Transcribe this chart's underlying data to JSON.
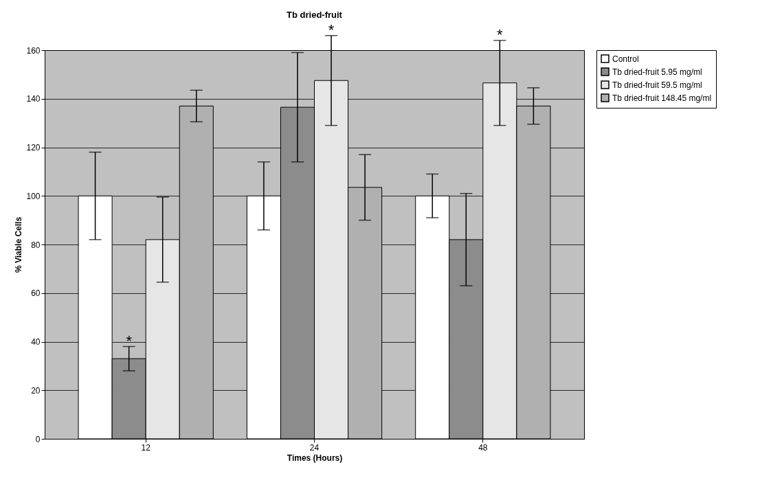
{
  "chart_data": {
    "type": "bar",
    "title": "Tb dried-fruit",
    "xlabel": "Times (Hours)",
    "ylabel": "% Viable Cells",
    "categories": [
      "12",
      "24",
      "48"
    ],
    "series": [
      {
        "name": "Control",
        "color": "#ffffff",
        "values": [
          100,
          100,
          100
        ],
        "errors": [
          18,
          14,
          9
        ]
      },
      {
        "name": "Tb dried-fruit 5.95 mg/ml",
        "color": "#8c8c8c",
        "values": [
          33,
          136.5,
          82
        ],
        "errors": [
          5,
          22.5,
          19
        ]
      },
      {
        "name": "Tb dried-fruit 59.5 mg/ml",
        "color": "#e6e6e6",
        "values": [
          82,
          147.5,
          146.5
        ],
        "errors": [
          17.5,
          18.5,
          17.5
        ]
      },
      {
        "name": "Tb dried-fruit 148.45 mg/ml",
        "color": "#b0b0b0",
        "values": [
          137,
          103.5,
          137
        ],
        "errors": [
          6.5,
          13.5,
          7.5
        ]
      }
    ],
    "annotations": [
      {
        "text": "*",
        "x": "12",
        "y": 33
      },
      {
        "text": "*",
        "x": "24",
        "y": 147.5
      },
      {
        "text": "*",
        "x": "48",
        "y": 146.5
      }
    ],
    "ylim": [
      0,
      160
    ],
    "yticks": [
      0,
      20,
      40,
      60,
      80,
      100,
      120,
      140,
      160
    ],
    "grid": "y",
    "legend": "right"
  }
}
